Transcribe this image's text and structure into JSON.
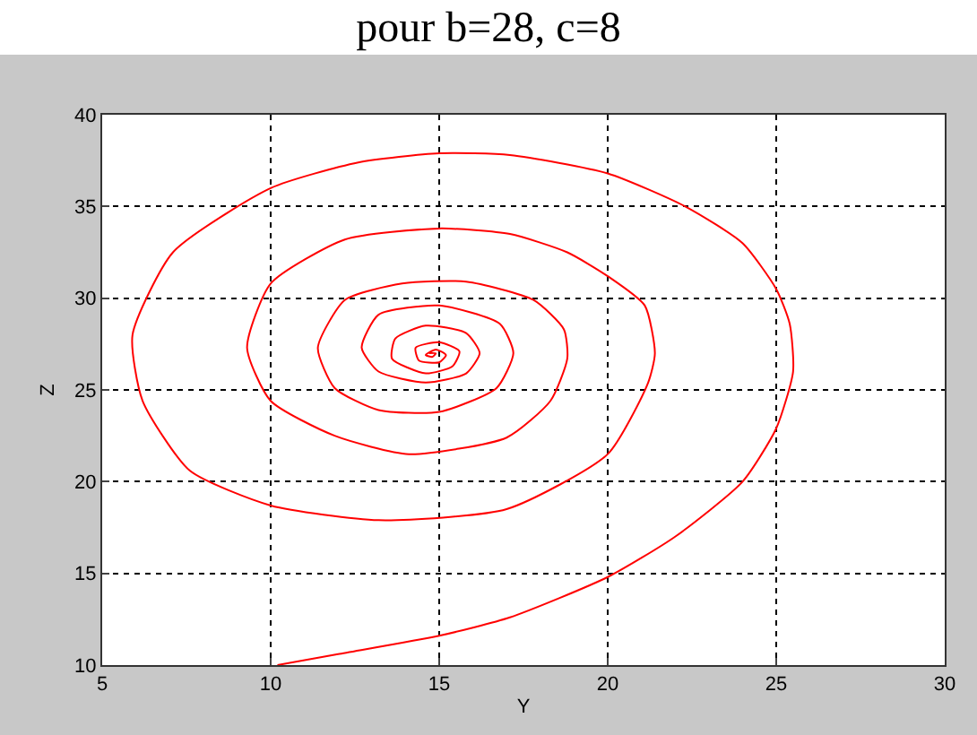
{
  "chart_data": {
    "type": "line",
    "title": "pour b=28, c=8",
    "xlabel": "Y",
    "ylabel": "Z",
    "xlim": [
      5,
      30
    ],
    "ylim": [
      10,
      40
    ],
    "xticks": [
      5,
      10,
      15,
      20,
      25,
      30
    ],
    "yticks": [
      10,
      15,
      20,
      25,
      30,
      35,
      40
    ],
    "grid": true,
    "marker": "none",
    "line_style": "solid",
    "series": [
      {
        "color": "#ff0000",
        "x": [
          10.2,
          12,
          15,
          17.1,
          20,
          22,
          24,
          25,
          25.5,
          25.4,
          25,
          24,
          22.3,
          20,
          17.1,
          15,
          12.6,
          10,
          7.1,
          5.9,
          6.2,
          7.6,
          10,
          13.2,
          17,
          20,
          21.2,
          21.4,
          21.1,
          20,
          18.8,
          17.1,
          15,
          12.2,
          10,
          9.3,
          10,
          11.9,
          14.1,
          17,
          18.3,
          18.8,
          18.7,
          17.8,
          15.8,
          13.9,
          12.2,
          11.4,
          11.9,
          13.2,
          15,
          16.7,
          17.2,
          16.8,
          15,
          13.2,
          12.7,
          13.2,
          14.6,
          15.8,
          16.2,
          15.8,
          14.6,
          13.7,
          13.6,
          14.6,
          15.4,
          15.6,
          15,
          14.3,
          14.4,
          15,
          15.2,
          14.9,
          14.6,
          14.8,
          14.9,
          14.7
        ],
        "values": [
          10,
          10.6,
          11.6,
          12.6,
          14.8,
          17,
          20,
          22.9,
          26,
          28.6,
          30.5,
          33,
          35,
          36.8,
          37.8,
          37.9,
          37.4,
          36,
          32.5,
          28,
          24.4,
          20.6,
          18.7,
          17.9,
          18.5,
          21.5,
          25.4,
          27,
          29.6,
          31.2,
          32.5,
          33.5,
          33.8,
          33.2,
          30.8,
          27.3,
          24.4,
          22.5,
          21.5,
          22.4,
          24.4,
          26.7,
          28.3,
          29.9,
          30.9,
          30.8,
          29.9,
          27.3,
          25.1,
          23.9,
          23.8,
          25.1,
          27,
          28.6,
          29.6,
          29.1,
          27.3,
          26,
          25.4,
          25.9,
          27,
          28.1,
          28.5,
          27.8,
          26.7,
          25.9,
          26.3,
          27.1,
          27.6,
          27.3,
          26.6,
          26.5,
          26.9,
          27.2,
          26.9,
          26.8,
          27,
          27
        ]
      }
    ]
  }
}
